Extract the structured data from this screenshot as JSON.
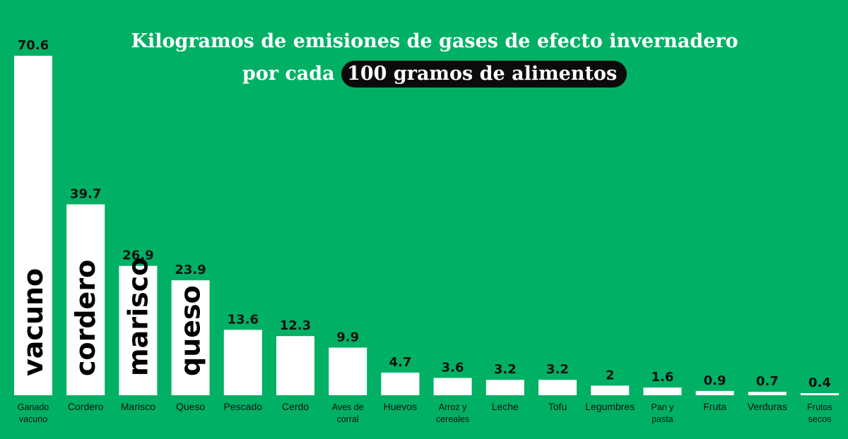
{
  "title": {
    "line1": "Kilogramos de emisiones de gases de efecto invernadero",
    "line2_prefix": "por cada",
    "line2_highlight": "100 gramos de alimentos"
  },
  "colors": {
    "background": "#00b064",
    "bar": "#ffffff",
    "highlight": "#0b0b0b"
  },
  "chart_data": {
    "type": "bar",
    "title": "Kilogramos de emisiones de gases de efecto invernadero por cada 100 gramos de alimentos",
    "xlabel": "",
    "ylabel": "",
    "ylim": [
      0,
      70.6
    ],
    "grid": false,
    "categories": [
      "Ganado vacuno",
      "Cordero",
      "Marisco",
      "Queso",
      "Pescado",
      "Cerdo",
      "Aves de corral",
      "Huevos",
      "Arroz y cereales",
      "Leche",
      "Tofu",
      "Legumbres",
      "Pan y pasta",
      "Fruta",
      "Verduras",
      "Frutos secos"
    ],
    "category_lines": [
      [
        "Ganado",
        "vacuno"
      ],
      [
        "Cordero"
      ],
      [
        "Marisco"
      ],
      [
        "Queso"
      ],
      [
        "Pescado"
      ],
      [
        "Cerdo"
      ],
      [
        "Aves de",
        "corral"
      ],
      [
        "Huevos"
      ],
      [
        "Arroz y",
        "cereales"
      ],
      [
        "Leche"
      ],
      [
        "Tofu"
      ],
      [
        "Legumbres"
      ],
      [
        "Pan y",
        "pasta"
      ],
      [
        "Fruta"
      ],
      [
        "Verduras"
      ],
      [
        "Frutos",
        "secos"
      ]
    ],
    "values": [
      70.6,
      39.7,
      26.9,
      23.9,
      13.6,
      12.3,
      9.9,
      4.7,
      3.6,
      3.2,
      3.2,
      2,
      1.6,
      0.9,
      0.7,
      0.4
    ],
    "value_labels": [
      "70.6",
      "39.7",
      "26.9",
      "23.9",
      "13.6",
      "12.3",
      "9.9",
      "4.7",
      "3.6",
      "3.2",
      "3.2",
      "2",
      "1.6",
      "0.9",
      "0.7",
      "0.4"
    ],
    "bar_words": [
      "vacuno",
      "cordero",
      "marisco",
      "queso"
    ]
  }
}
